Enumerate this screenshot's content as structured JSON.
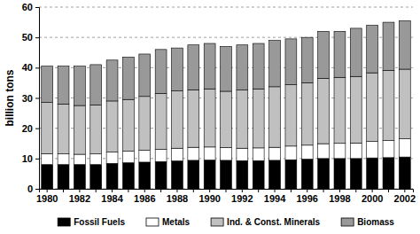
{
  "chart_data": {
    "type": "bar",
    "stacked": true,
    "grid": true,
    "legend": "bottom",
    "y_label": "billion tons",
    "categories": [
      "1980",
      null,
      "1982",
      null,
      "1984",
      null,
      "1986",
      null,
      "1988",
      null,
      "1990",
      null,
      "1992",
      null,
      "1994",
      null,
      "1996",
      null,
      "1998",
      null,
      "2000",
      null,
      "2002"
    ],
    "ylim": [
      0,
      60
    ],
    "yticks": [
      0,
      10,
      20,
      30,
      40,
      50,
      60
    ],
    "series": [
      {
        "name": "Fossil Fuels",
        "color": "#000000",
        "values": [
          8.0,
          8.0,
          8.0,
          8.0,
          8.4,
          8.6,
          8.8,
          9.0,
          9.2,
          9.4,
          9.5,
          9.4,
          9.3,
          9.3,
          9.4,
          9.6,
          9.8,
          10.0,
          10.0,
          10.0,
          10.2,
          10.3,
          10.5
        ]
      },
      {
        "name": "Metals",
        "color": "#ffffff",
        "values": [
          3.6,
          3.5,
          3.4,
          3.5,
          3.7,
          3.8,
          3.9,
          4.0,
          4.2,
          4.3,
          4.3,
          4.2,
          4.1,
          4.2,
          4.3,
          4.5,
          4.6,
          4.9,
          5.0,
          5.1,
          5.4,
          5.6,
          6.0
        ]
      },
      {
        "name": "Ind. & Const. Minerals",
        "color": "#c0c0c0",
        "values": [
          16.9,
          16.5,
          16.1,
          16.2,
          16.9,
          17.1,
          17.8,
          18.5,
          18.9,
          19.0,
          19.2,
          18.6,
          19.2,
          19.5,
          20.0,
          20.3,
          20.6,
          21.6,
          21.8,
          22.0,
          22.7,
          23.2,
          23.0
        ]
      },
      {
        "name": "Biomass",
        "color": "#999999",
        "values": [
          12.0,
          12.5,
          13.0,
          13.3,
          13.5,
          14.0,
          14.0,
          14.5,
          14.2,
          14.8,
          15.0,
          14.8,
          14.9,
          15.0,
          15.3,
          15.1,
          15.0,
          15.5,
          15.2,
          15.9,
          15.7,
          15.9,
          16.0
        ]
      }
    ]
  }
}
